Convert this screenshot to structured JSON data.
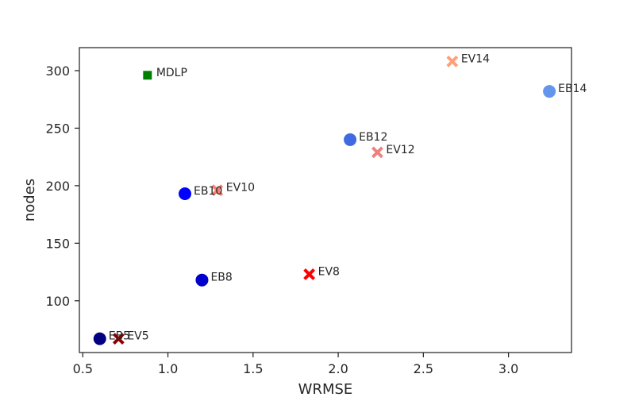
{
  "chart_data": {
    "type": "scatter",
    "title": "",
    "xlabel": "WRMSE",
    "ylabel": "nodes",
    "xlim": [
      0.48,
      3.37
    ],
    "ylim": [
      55,
      320
    ],
    "grid": false,
    "legend": "none",
    "x_ticks": [
      0.5,
      1.0,
      1.5,
      2.0,
      2.5,
      3.0
    ],
    "x_tick_labels": [
      "0.5",
      "1.0",
      "1.5",
      "2.0",
      "2.5",
      "3.0"
    ],
    "y_ticks": [
      100,
      150,
      200,
      250,
      300
    ],
    "y_tick_labels": [
      "100",
      "150",
      "200",
      "250",
      "300"
    ],
    "points": [
      {
        "label": "EB5",
        "x": 0.6,
        "y": 67,
        "marker": "circle",
        "color": "#000080"
      },
      {
        "label": "EB8",
        "x": 1.2,
        "y": 118,
        "marker": "circle",
        "color": "#0000CD"
      },
      {
        "label": "EB10",
        "x": 1.1,
        "y": 193,
        "marker": "circle",
        "color": "#0000FF"
      },
      {
        "label": "EB12",
        "x": 2.07,
        "y": 240,
        "marker": "circle",
        "color": "#4169E1"
      },
      {
        "label": "EB14",
        "x": 3.24,
        "y": 282,
        "marker": "circle",
        "color": "#6495ED"
      },
      {
        "label": "EV5",
        "x": 0.71,
        "y": 67,
        "marker": "x",
        "color": "#8B0000"
      },
      {
        "label": "EV8",
        "x": 1.83,
        "y": 123,
        "marker": "x",
        "color": "#FF0000"
      },
      {
        "label": "EV10",
        "x": 1.29,
        "y": 196,
        "marker": "x",
        "color": "#FA8072"
      },
      {
        "label": "EV12",
        "x": 2.23,
        "y": 229,
        "marker": "x",
        "color": "#F08080"
      },
      {
        "label": "EV14",
        "x": 2.67,
        "y": 308,
        "marker": "x",
        "color": "#FFA07A"
      },
      {
        "label": "MDLP",
        "x": 0.88,
        "y": 296,
        "marker": "square",
        "color": "#008000"
      }
    ]
  }
}
